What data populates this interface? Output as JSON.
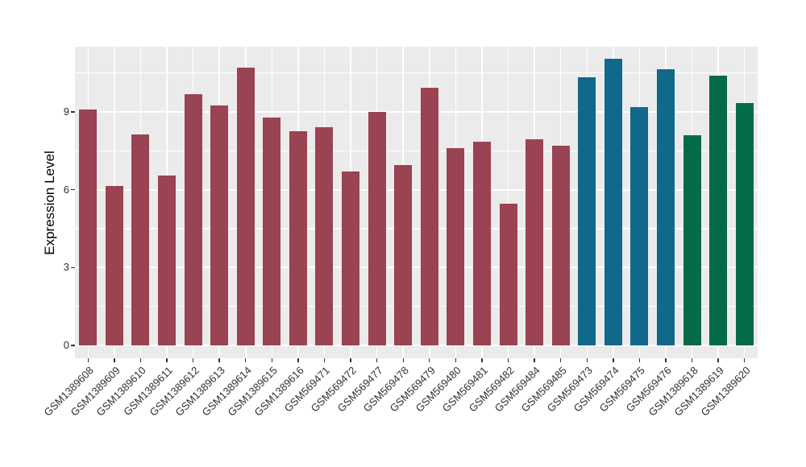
{
  "chart_data": {
    "type": "bar",
    "title": "",
    "xlabel": "",
    "ylabel": "Expression Level",
    "categories": [
      "GSM1389608",
      "GSM1389609",
      "GSM1389610",
      "GSM1389611",
      "GSM1389612",
      "GSM1389613",
      "GSM1389614",
      "GSM1389615",
      "GSM1389616",
      "GSM569471",
      "GSM569472",
      "GSM569477",
      "GSM569478",
      "GSM569479",
      "GSM569480",
      "GSM569481",
      "GSM569482",
      "GSM569484",
      "GSM569485",
      "GSM569473",
      "GSM569474",
      "GSM569475",
      "GSM569476",
      "GSM1389618",
      "GSM1389619",
      "GSM1389620"
    ],
    "values": [
      9.1,
      6.15,
      8.15,
      6.55,
      9.7,
      9.25,
      10.7,
      8.8,
      8.25,
      8.4,
      6.7,
      9.0,
      6.95,
      9.95,
      7.6,
      7.85,
      5.45,
      7.95,
      7.7,
      10.35,
      11.05,
      9.2,
      10.65,
      8.1,
      10.4,
      9.35
    ],
    "bar_groups": [
      "red",
      "red",
      "red",
      "red",
      "red",
      "red",
      "red",
      "red",
      "red",
      "red",
      "red",
      "red",
      "red",
      "red",
      "red",
      "red",
      "red",
      "red",
      "red",
      "blue",
      "blue",
      "blue",
      "blue",
      "green",
      "green",
      "green"
    ],
    "palette": {
      "red": "#9A4352",
      "blue": "#10698A",
      "green": "#046B47"
    },
    "yticks": [
      0,
      3,
      6,
      9
    ],
    "ytick_labels": [
      "0",
      "3",
      "6",
      "9"
    ],
    "minor_yticks": [
      1.5,
      4.5,
      7.5,
      10.5
    ],
    "ylim": [
      -0.5,
      11.52
    ],
    "grid": true,
    "legend": "none",
    "style": {
      "panel_bg": "#EBEBEB",
      "grid_color": "#FFFFFF",
      "tick_color": "#333333",
      "label_color": "#303030",
      "title_color": "#000000",
      "page_bg": "#FFFFFF"
    }
  }
}
